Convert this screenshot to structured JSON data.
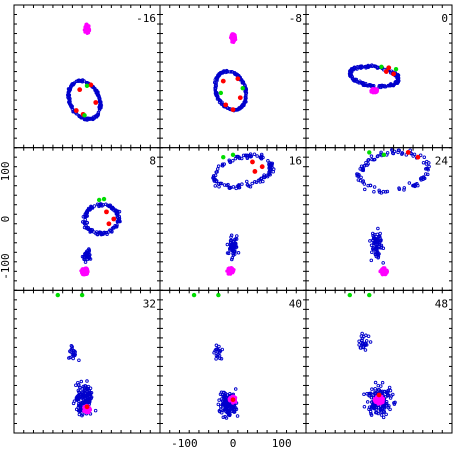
{
  "chart_data": {
    "type": "scatter",
    "grid": false,
    "layout": "3x3 panel grid, shared axes",
    "xlim": [
      -150,
      150
    ],
    "ylim": [
      -150,
      150
    ],
    "x_tick_labels": [
      "-100",
      "0",
      "100"
    ],
    "x_tick_values": [
      -100,
      0,
      100
    ],
    "y_tick_labels": [
      "100",
      "0",
      "-100"
    ],
    "y_tick_values": [
      100,
      0,
      -100
    ],
    "colors": {
      "blue": "#0000cc",
      "red": "#ff0000",
      "green": "#00dd00",
      "magenta": "#ff00ff"
    },
    "panels": [
      {
        "label": "-16",
        "magenta": {
          "x": 0,
          "y": 100,
          "rx": 6,
          "ry": 10,
          "n": 45
        },
        "blue": [
          {
            "kind": "ring",
            "cx": -5,
            "cy": -50,
            "rx": 30,
            "ry": 42,
            "rot": 25,
            "n": 180,
            "jitter": 3
          }
        ],
        "red": [
          [
            -15,
            -28
          ],
          [
            8,
            -18
          ],
          [
            -22,
            -72
          ],
          [
            18,
            -55
          ],
          [
            -8,
            -80
          ]
        ],
        "green": [
          [
            0,
            -20
          ],
          [
            -5,
            -82
          ]
        ]
      },
      {
        "label": "-8",
        "magenta": {
          "x": 0,
          "y": 80,
          "rx": 6,
          "ry": 10,
          "n": 45
        },
        "blue": [
          {
            "kind": "ring",
            "cx": -5,
            "cy": -30,
            "rx": 30,
            "ry": 42,
            "rot": 20,
            "n": 180,
            "jitter": 3
          }
        ],
        "red": [
          [
            -20,
            -10
          ],
          [
            10,
            -5
          ],
          [
            -15,
            -60
          ],
          [
            15,
            -45
          ],
          [
            0,
            -70
          ]
        ],
        "green": [
          [
            -25,
            -35
          ],
          [
            20,
            -25
          ]
        ]
      },
      {
        "label": "0",
        "magenta": {
          "x": -10,
          "y": -30,
          "rx": 8,
          "ry": 5,
          "n": 45
        },
        "blue": [
          {
            "kind": "ring",
            "cx": -10,
            "cy": 0,
            "rx": 50,
            "ry": 20,
            "rot": -8,
            "n": 180,
            "jitter": 4
          }
        ],
        "red": [
          [
            15,
            10
          ],
          [
            30,
            5
          ],
          [
            20,
            18
          ]
        ],
        "green": [
          [
            5,
            20
          ],
          [
            35,
            15
          ]
        ]
      },
      {
        "label": "8",
        "magenta": {
          "x": -5,
          "y": -110,
          "rx": 8,
          "ry": 8,
          "n": 50
        },
        "blue": [
          {
            "kind": "ring",
            "cx": 30,
            "cy": 0,
            "rx": 35,
            "ry": 30,
            "rot": 10,
            "n": 130,
            "jitter": 6
          },
          {
            "kind": "cluster",
            "cx": 0,
            "cy": -75,
            "rx": 12,
            "ry": 20,
            "n": 40
          }
        ],
        "red": [
          [
            40,
            15
          ],
          [
            55,
            0
          ],
          [
            45,
            -10
          ]
        ],
        "green": [
          [
            25,
            40
          ],
          [
            35,
            42
          ]
        ]
      },
      {
        "label": "16",
        "magenta": {
          "x": -5,
          "y": -110,
          "rx": 8,
          "ry": 8,
          "n": 50
        },
        "blue": [
          {
            "kind": "ring",
            "cx": 20,
            "cy": 100,
            "rx": 60,
            "ry": 30,
            "rot": 15,
            "n": 120,
            "jitter": 8
          },
          {
            "kind": "cluster",
            "cx": 0,
            "cy": -60,
            "rx": 15,
            "ry": 35,
            "n": 60
          }
        ],
        "red": [
          [
            40,
            120
          ],
          [
            60,
            110
          ],
          [
            45,
            100
          ]
        ],
        "green": [
          [
            -20,
            130
          ],
          [
            0,
            135
          ]
        ]
      },
      {
        "label": "24",
        "magenta": {
          "x": 10,
          "y": -110,
          "rx": 8,
          "ry": 8,
          "n": 50
        },
        "blue": [
          {
            "kind": "ring",
            "cx": 30,
            "cy": 100,
            "rx": 70,
            "ry": 40,
            "rot": 10,
            "n": 100,
            "jitter": 10
          },
          {
            "kind": "cluster",
            "cx": -5,
            "cy": -60,
            "rx": 20,
            "ry": 45,
            "n": 70
          }
        ],
        "red": [
          [
            60,
            140
          ],
          [
            80,
            130
          ]
        ],
        "green": [
          [
            -20,
            140
          ],
          [
            10,
            135
          ]
        ]
      },
      {
        "label": "32",
        "magenta": {
          "x": 0,
          "y": -100,
          "rx": 8,
          "ry": 8,
          "n": 50
        },
        "blue": [
          {
            "kind": "cluster",
            "cx": -5,
            "cy": -80,
            "rx": 25,
            "ry": 50,
            "n": 150
          },
          {
            "kind": "cluster",
            "cx": -30,
            "cy": 20,
            "rx": 15,
            "ry": 30,
            "n": 20
          }
        ],
        "red": [
          [
            0,
            -95
          ]
        ],
        "green": [
          [
            -60,
            140
          ],
          [
            -10,
            140
          ]
        ]
      },
      {
        "label": "40",
        "magenta": {
          "x": 0,
          "y": -80,
          "rx": 8,
          "ry": 8,
          "n": 50
        },
        "blue": [
          {
            "kind": "cluster",
            "cx": -10,
            "cy": -90,
            "rx": 25,
            "ry": 40,
            "n": 150
          },
          {
            "kind": "cluster",
            "cx": -30,
            "cy": 20,
            "rx": 15,
            "ry": 30,
            "n": 20
          }
        ],
        "red": [
          [
            0,
            -80
          ]
        ],
        "green": [
          [
            -80,
            140
          ],
          [
            -30,
            140
          ]
        ]
      },
      {
        "label": "48",
        "magenta": {
          "x": 0,
          "y": -80,
          "rx": 10,
          "ry": 10,
          "n": 50
        },
        "blue": [
          {
            "kind": "cluster",
            "cx": 0,
            "cy": -80,
            "rx": 40,
            "ry": 45,
            "n": 160
          },
          {
            "kind": "cluster",
            "cx": -30,
            "cy": 40,
            "rx": 20,
            "ry": 30,
            "n": 25
          }
        ],
        "red": [
          [
            0,
            -70
          ]
        ],
        "green": [
          [
            -60,
            140
          ],
          [
            -20,
            140
          ]
        ]
      }
    ]
  }
}
